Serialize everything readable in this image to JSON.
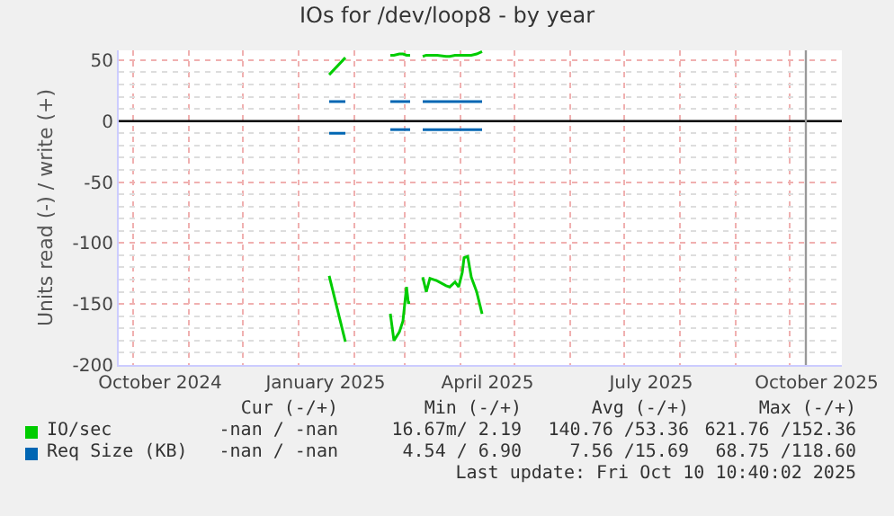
{
  "chart_data": {
    "type": "line",
    "title": "IOs for /dev/loop8 - by year",
    "ylabel": "Units read (-) / write (+)",
    "x": [
      "2025-01-18",
      "2025-01-27",
      "2025-02-08",
      "2025-02-21",
      "2025-02-23",
      "2025-02-26",
      "2025-02-28",
      "2025-03-02",
      "2025-03-03",
      "2025-03-04",
      "2025-03-07",
      "2025-03-11",
      "2025-03-13",
      "2025-03-15",
      "2025-03-19",
      "2025-03-24",
      "2025-03-26",
      "2025-03-29",
      "2025-03-31",
      "2025-04-02",
      "2025-04-03",
      "2025-04-05",
      "2025-04-07",
      "2025-04-10",
      "2025-04-13"
    ],
    "series": [
      {
        "name": "IO/sec",
        "color": "#00cc00",
        "values": [
          38,
          52,
          null,
          54,
          54,
          55,
          55,
          54,
          54,
          54,
          null,
          53,
          54,
          54,
          54,
          53,
          53,
          54,
          54,
          54,
          54,
          54,
          54,
          55,
          57
        ]
      },
      {
        "color": "#00cc00",
        "values": [
          -127,
          -181,
          null,
          -158,
          -180,
          -173,
          -164,
          -136,
          -149,
          -149,
          null,
          -128,
          -140,
          -129,
          -131,
          -135,
          -136,
          -132,
          -136,
          -124,
          -112,
          -111,
          -128,
          -140,
          -158
        ]
      },
      {
        "name": "Req Size (KB)",
        "color": "#0066b3",
        "values": [
          16,
          16,
          null,
          16,
          16,
          16,
          16,
          16,
          16,
          16,
          null,
          16,
          16,
          16,
          16,
          16,
          16,
          16,
          16,
          16,
          16,
          16,
          16,
          16,
          16
        ]
      },
      {
        "color": "#0066b3",
        "values": [
          -10,
          -10,
          null,
          -7,
          -7,
          -7,
          -7,
          -7,
          -7,
          -7,
          null,
          -7,
          -7,
          -7,
          -7,
          -7,
          -7,
          -7,
          -7,
          -7,
          -7,
          -7,
          -7,
          -7,
          -7
        ]
      }
    ],
    "xlim": [
      "2024-09-23",
      "2025-10-30"
    ],
    "xticks": [
      {
        "value": "2024-10-16",
        "label": "October 2024"
      },
      {
        "value": "2025-01-16",
        "label": "January 2025"
      },
      {
        "value": "2025-04-16",
        "label": "April 2025"
      },
      {
        "value": "2025-07-16",
        "label": "July 2025"
      },
      {
        "value": "2025-10-16",
        "label": "October 2025"
      }
    ],
    "ylim": [
      -200,
      58
    ],
    "yticks": [
      -200,
      -150,
      -100,
      -50,
      0,
      50
    ],
    "ref_lines": [
      {
        "axis": "y",
        "value": 0,
        "color": "#000000"
      },
      {
        "axis": "x",
        "value": "2025-10-10",
        "color": "#999999"
      }
    ],
    "grid": true,
    "legend": "bottom",
    "annotations": [
      "Cur (-/+)",
      "Min (-/+)",
      "Avg (-/+)",
      "Max (-/+)",
      "-nan / -nan",
      "16.67m/ 2.19",
      "140.76 /53.36",
      "621.76 /152.36",
      "-nan / -nan",
      "4.54 / 6.90",
      "7.56 /15.69",
      "68.75 /118.60",
      "Last update: Fri Oct 10 10:40:02 2025"
    ]
  }
}
